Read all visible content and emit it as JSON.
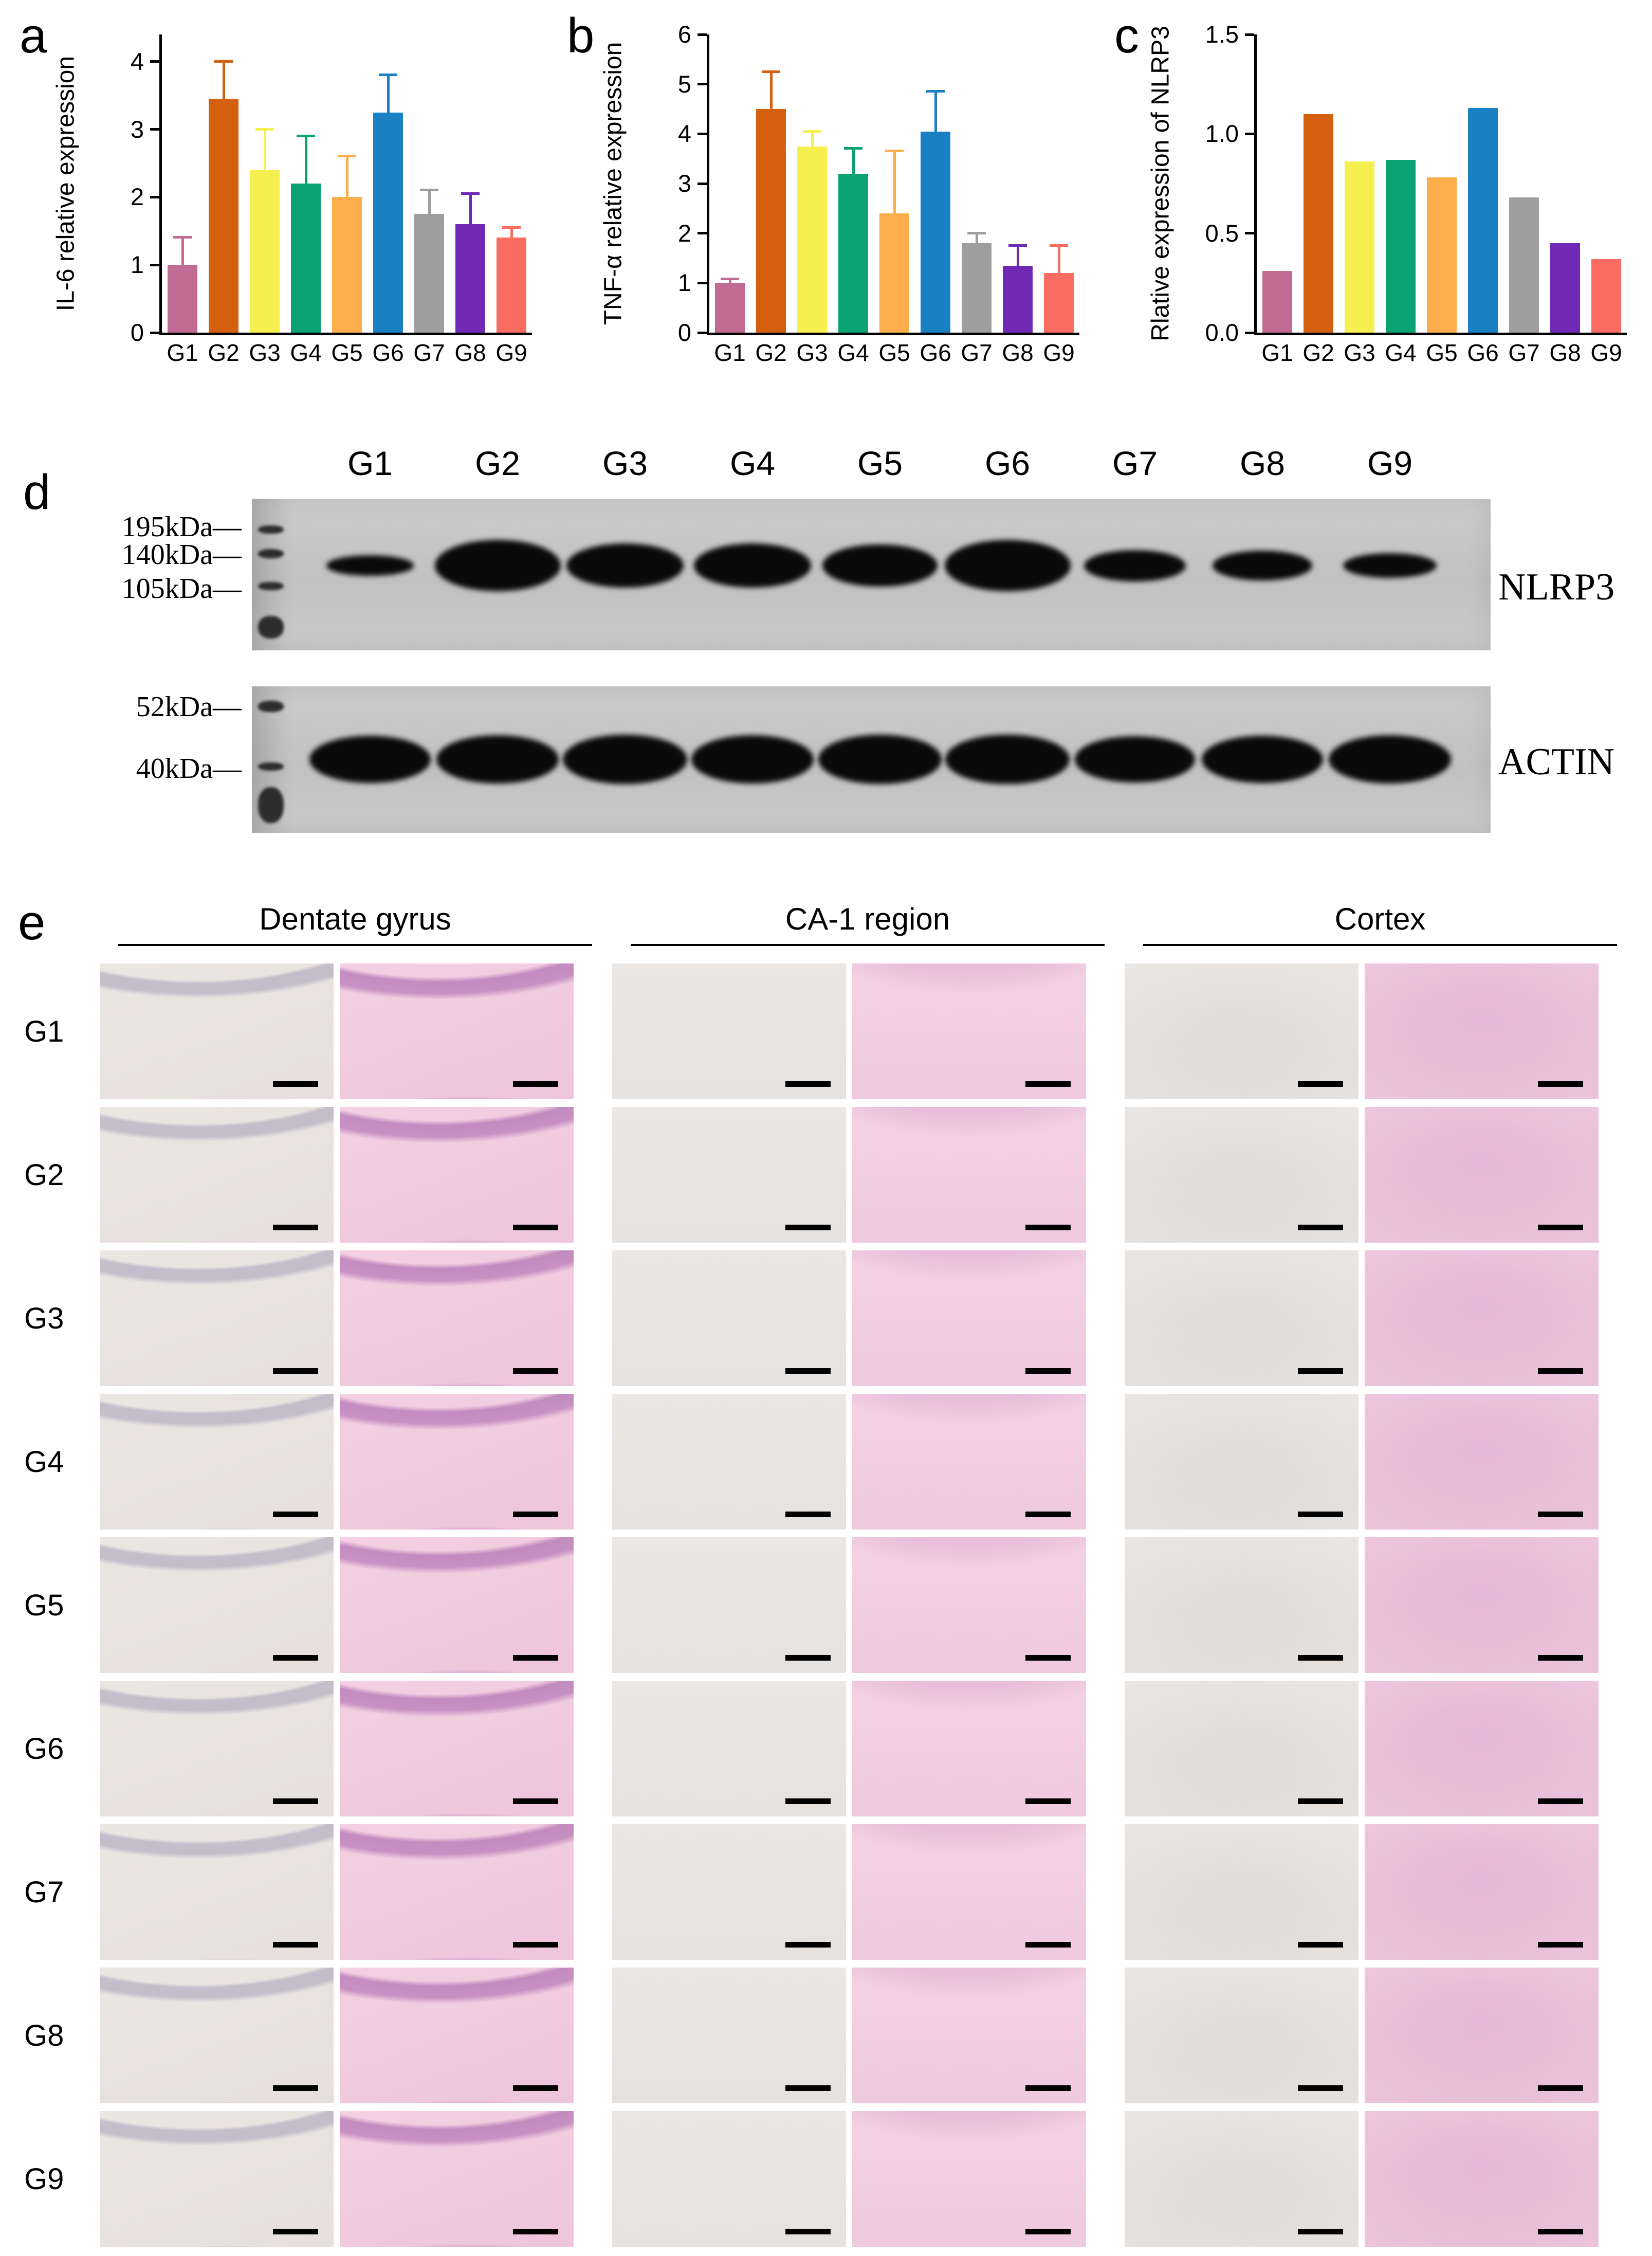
{
  "panels": {
    "a": "a",
    "b": "b",
    "c": "c",
    "d": "d",
    "e": "e"
  },
  "colors": {
    "group_bars": [
      "#c06a94",
      "#d35f0f",
      "#f5ef50",
      "#0aa173",
      "#fbae4b",
      "#1a80c4",
      "#9e9e9e",
      "#7029b5",
      "#fa6b61"
    ]
  },
  "chart_data": [
    {
      "type": "bar",
      "panel": "a",
      "ylabel": "IL-6 relative expression",
      "categories": [
        "G1",
        "G2",
        "G3",
        "G4",
        "G5",
        "G6",
        "G7",
        "G8",
        "G9"
      ],
      "values": [
        1.0,
        3.45,
        2.4,
        2.2,
        2.0,
        3.25,
        1.75,
        1.6,
        1.4
      ],
      "errors": [
        0.4,
        0.55,
        0.6,
        0.7,
        0.6,
        0.55,
        0.35,
        0.45,
        0.15
      ],
      "ylim": [
        0,
        4.4
      ],
      "yticks": [
        0,
        1,
        2,
        3,
        4
      ],
      "ytick_labels": [
        "0",
        "1",
        "2",
        "3",
        "4"
      ],
      "grid": false,
      "legend": "none"
    },
    {
      "type": "bar",
      "panel": "b",
      "ylabel": "TNF-α relative expression",
      "categories": [
        "G1",
        "G2",
        "G3",
        "G4",
        "G5",
        "G6",
        "G7",
        "G8",
        "G9"
      ],
      "values": [
        1.0,
        4.5,
        3.75,
        3.2,
        2.4,
        4.05,
        1.8,
        1.35,
        1.2
      ],
      "errors": [
        0.08,
        0.75,
        0.3,
        0.5,
        1.25,
        0.8,
        0.2,
        0.4,
        0.55
      ],
      "ylim": [
        0,
        6
      ],
      "yticks": [
        0,
        1,
        2,
        3,
        4,
        5,
        6
      ],
      "ytick_labels": [
        "0",
        "1",
        "2",
        "3",
        "4",
        "5",
        "6"
      ],
      "grid": false,
      "legend": "none"
    },
    {
      "type": "bar",
      "panel": "c",
      "ylabel": "Rlative expression of NLRP3",
      "categories": [
        "G1",
        "G2",
        "G3",
        "G4",
        "G5",
        "G6",
        "G7",
        "G8",
        "G9"
      ],
      "values": [
        0.31,
        1.1,
        0.86,
        0.87,
        0.78,
        1.13,
        0.68,
        0.45,
        0.37
      ],
      "errors": null,
      "ylim": [
        0,
        1.5
      ],
      "yticks": [
        0,
        0.5,
        1,
        1.5
      ],
      "ytick_labels": [
        "0.0",
        "0.5",
        "1.0",
        "1.5"
      ],
      "grid": false,
      "legend": "none"
    }
  ],
  "blot": {
    "lanes": [
      "G1",
      "G2",
      "G3",
      "G4",
      "G5",
      "G6",
      "G7",
      "G8",
      "G9"
    ],
    "strips": [
      {
        "name": "NLRP3",
        "markers": [
          "195kDa—",
          "140kDa—",
          "105kDa—"
        ],
        "band_intensity": [
          0.22,
          1.0,
          0.82,
          0.82,
          0.78,
          1.0,
          0.5,
          0.46,
          0.34
        ]
      },
      {
        "name": "ACTIN",
        "markers": [
          "52kDa—",
          "40kDa—"
        ],
        "band_intensity": [
          0.9,
          0.93,
          0.96,
          0.92,
          0.94,
          0.96,
          0.88,
          0.9,
          0.92
        ]
      }
    ]
  },
  "histology": {
    "column_groups": [
      "Dentate gyrus",
      "CA-1 region",
      "Cortex"
    ],
    "rows": [
      "G1",
      "G2",
      "G3",
      "G4",
      "G5",
      "G6",
      "G7",
      "G8",
      "G9"
    ]
  }
}
